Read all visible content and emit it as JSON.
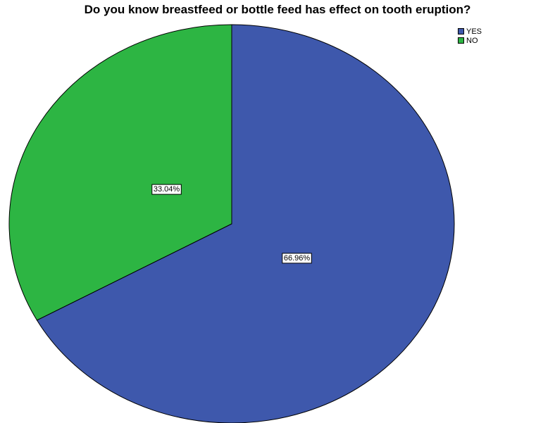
{
  "chart_data": {
    "type": "pie",
    "title": "Do you know breastfeed or bottle feed has effect on tooth eruption?",
    "categories": [
      "YES",
      "NO"
    ],
    "values": [
      66.96,
      33.04
    ],
    "labels": [
      "66.96%",
      "33.04%"
    ],
    "colors": [
      "#3e58ac",
      "#2db543"
    ],
    "start_angle": "12 o'clock",
    "direction": "clockwise",
    "legend_position": "top-right"
  }
}
